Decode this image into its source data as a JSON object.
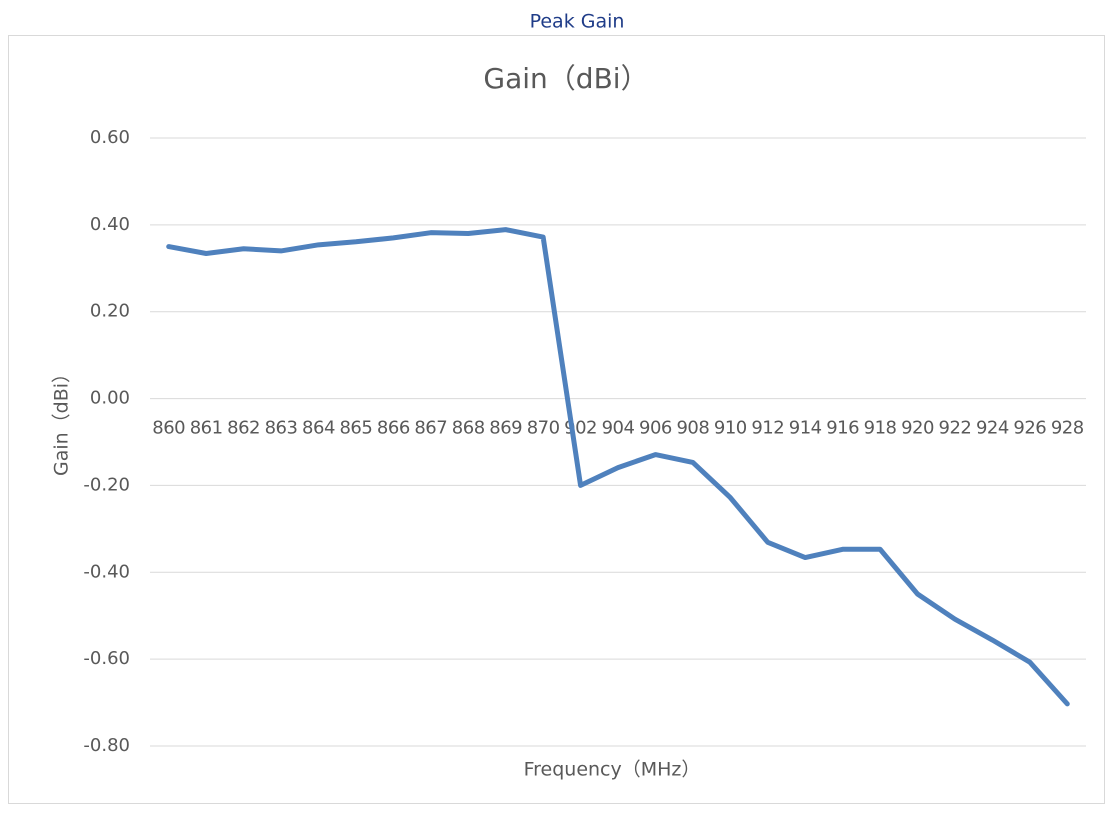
{
  "page_title": "Peak Gain",
  "chart_data": {
    "type": "line",
    "title": "Gain（dBi）",
    "x_label": "Frequency（MHz）",
    "y_label": "Gain（dBi）",
    "categories": [
      "860",
      "861",
      "862",
      "863",
      "864",
      "865",
      "866",
      "867",
      "868",
      "869",
      "870",
      "902",
      "904",
      "906",
      "908",
      "910",
      "912",
      "914",
      "916",
      "918",
      "920",
      "922",
      "924",
      "926",
      "928"
    ],
    "series": [
      {
        "name": "Gain（dBi）",
        "color": "#4f81bd",
        "values": [
          0.35,
          0.334,
          0.345,
          0.34,
          0.354,
          0.361,
          0.37,
          0.382,
          0.38,
          0.389,
          0.372,
          -0.2,
          -0.159,
          -0.129,
          -0.147,
          -0.228,
          -0.331,
          -0.366,
          -0.347,
          -0.347,
          -0.45,
          -0.508,
          -0.556,
          -0.607,
          -0.703
        ]
      }
    ],
    "ylim": [
      -0.8,
      0.6
    ],
    "yticks": [
      {
        "value": -0.8,
        "label": "-0.80"
      },
      {
        "value": -0.6,
        "label": "-0.60"
      },
      {
        "value": -0.4,
        "label": "-0.40"
      },
      {
        "value": -0.2,
        "label": "-0.20"
      },
      {
        "value": 0,
        "label": "0.00"
      },
      {
        "value": 0.2,
        "label": "0.20"
      },
      {
        "value": 0.4,
        "label": "0.40"
      },
      {
        "value": 0.6,
        "label": "0.60"
      }
    ],
    "grid": true
  }
}
